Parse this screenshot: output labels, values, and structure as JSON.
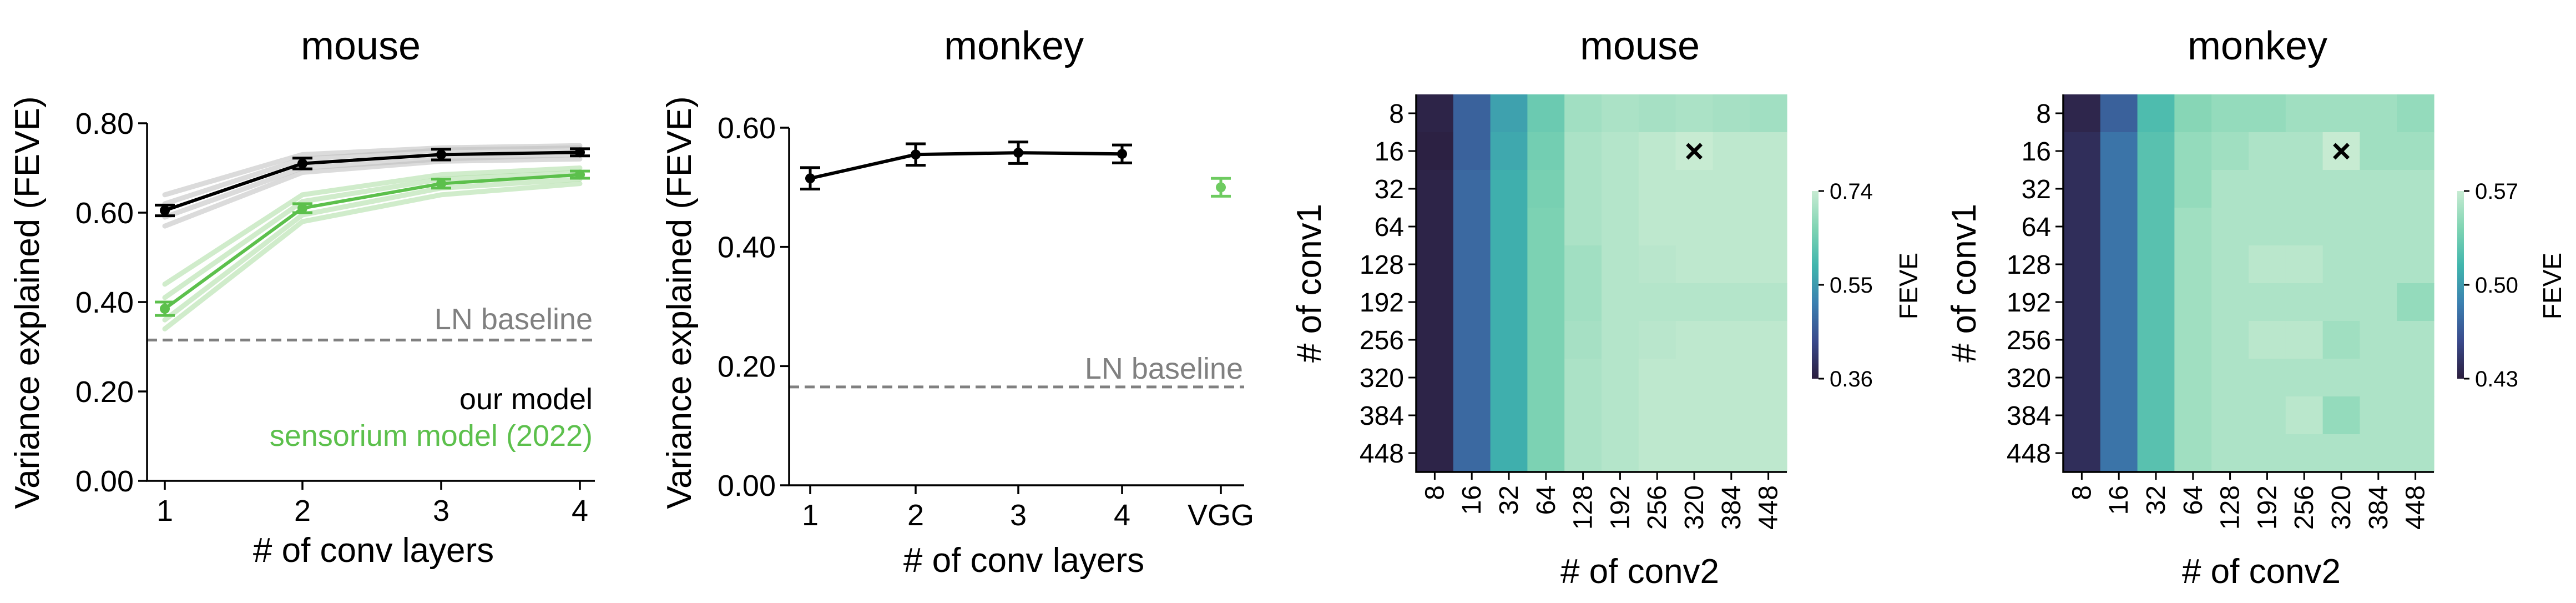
{
  "colors": {
    "our_model": "#000000",
    "sensorium": "#5cc04c",
    "ln_baseline": "#808080",
    "colormap": [
      "#2b1e3e",
      "#3a4a8c",
      "#3b7fb0",
      "#40b5ad",
      "#7fd4b3",
      "#c7ebd2"
    ]
  },
  "chart_data": [
    {
      "type": "line",
      "title": "mouse",
      "xlabel": "# of conv layers",
      "ylabel": "Variance explained (FEVE)",
      "x": [
        1,
        2,
        3,
        4
      ],
      "xticklabels": [
        "1",
        "2",
        "3",
        "4"
      ],
      "ylim": [
        0,
        0.8
      ],
      "yticks": [
        "0.00",
        "0.20",
        "0.40",
        "0.60",
        "0.80"
      ],
      "series": [
        {
          "name": "our model",
          "color": "#000000",
          "values": [
            0.605,
            0.71,
            0.73,
            0.735
          ],
          "errors": [
            0.012,
            0.012,
            0.012,
            0.008
          ]
        },
        {
          "name": "sensorium model (2022)",
          "color": "#5cc04c",
          "values": [
            0.385,
            0.61,
            0.665,
            0.685
          ],
          "errors": [
            0.015,
            0.01,
            0.01,
            0.008
          ]
        }
      ],
      "faint_runs": {
        "our model": [
          [
            0.64,
            0.73,
            0.745,
            0.75
          ],
          [
            0.62,
            0.72,
            0.74,
            0.745
          ],
          [
            0.59,
            0.7,
            0.72,
            0.73
          ],
          [
            0.57,
            0.69,
            0.715,
            0.72
          ]
        ],
        "sensorium model (2022)": [
          [
            0.44,
            0.64,
            0.685,
            0.7
          ],
          [
            0.41,
            0.625,
            0.675,
            0.69
          ],
          [
            0.36,
            0.595,
            0.655,
            0.675
          ],
          [
            0.34,
            0.58,
            0.64,
            0.665
          ]
        ]
      },
      "baseline": {
        "label": "LN baseline",
        "value": 0.315
      }
    },
    {
      "type": "line",
      "title": "monkey",
      "xlabel": "# of conv layers",
      "ylabel": "Variance explained (FEVE)",
      "x": [
        1,
        2,
        3,
        4
      ],
      "xticklabels": [
        "1",
        "2",
        "3",
        "4",
        "VGG"
      ],
      "ylim": [
        0,
        0.6
      ],
      "yticks": [
        "0.00",
        "0.20",
        "0.40",
        "0.60"
      ],
      "series": [
        {
          "name": "our model",
          "color": "#000000",
          "values": [
            0.515,
            0.555,
            0.558,
            0.556
          ],
          "errors": [
            0.018,
            0.018,
            0.018,
            0.015
          ]
        }
      ],
      "vgg": {
        "label": "VGG",
        "value": 0.5,
        "error": 0.015,
        "color": "#6ecb60"
      },
      "baseline": {
        "label": "LN baseline",
        "value": 0.165
      }
    },
    {
      "type": "heatmap",
      "title": "mouse",
      "xlabel": "# of conv2",
      "ylabel": "# of conv1",
      "x": [
        "8",
        "16",
        "32",
        "64",
        "128",
        "192",
        "256",
        "320",
        "384",
        "448"
      ],
      "y": [
        "8",
        "16",
        "32",
        "64",
        "128",
        "192",
        "256",
        "320",
        "384",
        "448"
      ],
      "values": [
        [
          0.37,
          0.47,
          0.56,
          0.64,
          0.7,
          0.71,
          0.705,
          0.71,
          0.705,
          0.7
        ],
        [
          0.365,
          0.47,
          0.57,
          0.65,
          0.71,
          0.72,
          0.73,
          0.74,
          0.73,
          0.73
        ],
        [
          0.37,
          0.48,
          0.58,
          0.655,
          0.71,
          0.72,
          0.73,
          0.73,
          0.73,
          0.73
        ],
        [
          0.37,
          0.48,
          0.58,
          0.66,
          0.71,
          0.72,
          0.73,
          0.73,
          0.73,
          0.73
        ],
        [
          0.37,
          0.48,
          0.58,
          0.66,
          0.7,
          0.72,
          0.725,
          0.73,
          0.73,
          0.73
        ],
        [
          0.37,
          0.48,
          0.58,
          0.66,
          0.7,
          0.72,
          0.72,
          0.72,
          0.72,
          0.72
        ],
        [
          0.37,
          0.48,
          0.58,
          0.66,
          0.705,
          0.72,
          0.725,
          0.73,
          0.73,
          0.73
        ],
        [
          0.37,
          0.48,
          0.58,
          0.66,
          0.71,
          0.72,
          0.73,
          0.73,
          0.73,
          0.73
        ],
        [
          0.37,
          0.48,
          0.58,
          0.66,
          0.71,
          0.72,
          0.73,
          0.73,
          0.73,
          0.73
        ],
        [
          0.37,
          0.48,
          0.58,
          0.66,
          0.71,
          0.72,
          0.73,
          0.73,
          0.73,
          0.73
        ]
      ],
      "vmin": 0.36,
      "vmax": 0.74,
      "colorbar": {
        "label": "FEVE",
        "ticks": [
          "0.74",
          "0.55",
          "0.36"
        ],
        "tick_values": [
          0.74,
          0.55,
          0.36
        ]
      },
      "marker": {
        "symbol": "×",
        "x": "320",
        "y": "16"
      }
    },
    {
      "type": "heatmap",
      "title": "monkey",
      "xlabel": "# of conv2",
      "ylabel": "# of conv1",
      "x": [
        "8",
        "16",
        "32",
        "64",
        "128",
        "192",
        "256",
        "320",
        "384",
        "448"
      ],
      "y": [
        "8",
        "16",
        "32",
        "64",
        "128",
        "192",
        "256",
        "320",
        "384",
        "448"
      ],
      "values": [
        [
          0.435,
          0.47,
          0.52,
          0.545,
          0.55,
          0.55,
          0.555,
          0.555,
          0.555,
          0.55
        ],
        [
          0.44,
          0.48,
          0.525,
          0.55,
          0.555,
          0.56,
          0.56,
          0.57,
          0.555,
          0.555
        ],
        [
          0.44,
          0.48,
          0.525,
          0.55,
          0.56,
          0.56,
          0.56,
          0.56,
          0.56,
          0.56
        ],
        [
          0.44,
          0.48,
          0.525,
          0.555,
          0.56,
          0.56,
          0.56,
          0.56,
          0.56,
          0.56
        ],
        [
          0.44,
          0.48,
          0.525,
          0.555,
          0.56,
          0.565,
          0.565,
          0.56,
          0.56,
          0.56
        ],
        [
          0.44,
          0.48,
          0.525,
          0.555,
          0.56,
          0.56,
          0.56,
          0.56,
          0.56,
          0.55
        ],
        [
          0.44,
          0.48,
          0.525,
          0.555,
          0.56,
          0.565,
          0.565,
          0.555,
          0.56,
          0.56
        ],
        [
          0.44,
          0.48,
          0.525,
          0.555,
          0.56,
          0.56,
          0.56,
          0.56,
          0.56,
          0.56
        ],
        [
          0.44,
          0.48,
          0.525,
          0.555,
          0.56,
          0.56,
          0.565,
          0.55,
          0.56,
          0.56
        ],
        [
          0.44,
          0.48,
          0.525,
          0.555,
          0.56,
          0.56,
          0.56,
          0.56,
          0.56,
          0.56
        ]
      ],
      "vmin": 0.43,
      "vmax": 0.57,
      "colorbar": {
        "label": "FEVE",
        "ticks": [
          "0.57",
          "0.50",
          "0.43"
        ],
        "tick_values": [
          0.57,
          0.5,
          0.43
        ]
      },
      "marker": {
        "symbol": "×",
        "x": "320",
        "y": "16"
      }
    }
  ]
}
